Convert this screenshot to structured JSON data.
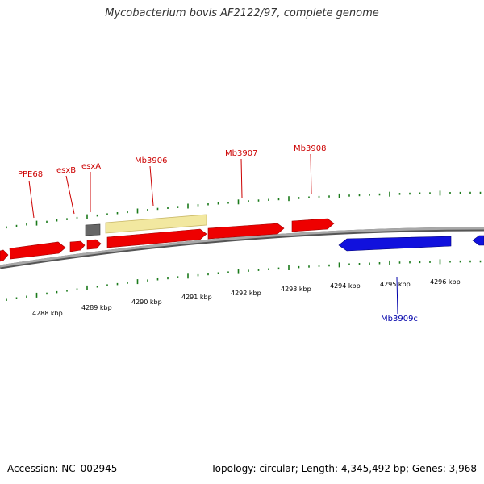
{
  "title": "Mycobacterium bovis AF2122/97, complete genome",
  "footer": {
    "accession": "Accession: NC_002945",
    "summary": "Topology: circular; Length: 4,345,492 bp; Genes: 3,968"
  },
  "colors": {
    "forward_gene": "#ee0000",
    "reverse_gene": "#1111dd",
    "pseudo_gene": "#f2e8a0",
    "other_feature": "#666666",
    "backbone": "#888888",
    "tick": "#1a7a1a",
    "label_forward": "#cc0000",
    "label_reverse": "#0000aa",
    "kbp_label": "#000000"
  },
  "kbp_labels": [
    "4288 kbp",
    "4289 kbp",
    "4290 kbp",
    "4291 kbp",
    "4292 kbp",
    "4293 kbp",
    "4294 kbp",
    "4295 kbp",
    "4296 kbp"
  ],
  "gene_labels": {
    "ppe68": "PPE68",
    "esxb": "esxB",
    "esxa": "esxA",
    "mb3906": "Mb3906",
    "mb3907": "Mb3907",
    "mb3908": "Mb3908",
    "mb3909c": "Mb3909c"
  }
}
